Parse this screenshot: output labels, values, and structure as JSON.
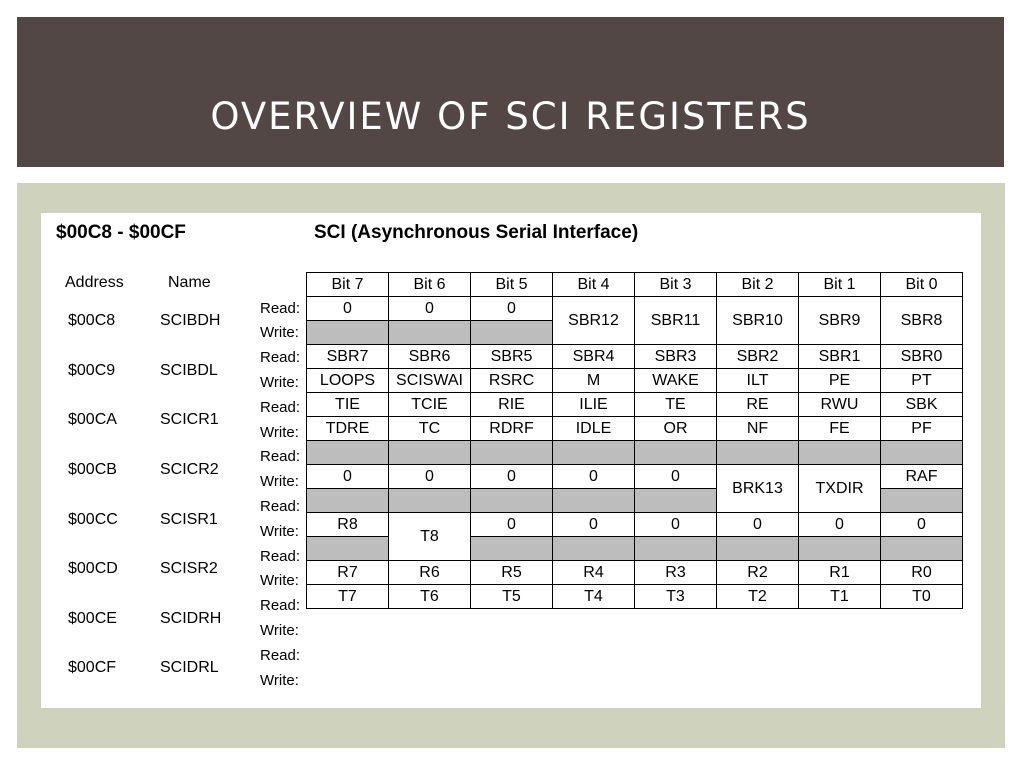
{
  "slide": {
    "title": "OVERVIEW OF SCI REGISTERS"
  },
  "doc": {
    "address_range": "$00C8 - $00CF",
    "title": "SCI (Asynchronous Serial Interface)",
    "col_address": "Address",
    "col_name": "Name",
    "read_label": "Read:",
    "write_label": "Write:",
    "bits": [
      "Bit 7",
      "Bit 6",
      "Bit 5",
      "Bit 4",
      "Bit 3",
      "Bit 2",
      "Bit 1",
      "Bit 0"
    ],
    "registers": [
      {
        "address": "$00C8",
        "name": "SCIBDH"
      },
      {
        "address": "$00C9",
        "name": "SCIBDL"
      },
      {
        "address": "$00CA",
        "name": "SCICR1"
      },
      {
        "address": "$00CB",
        "name": "SCICR2"
      },
      {
        "address": "$00CC",
        "name": "SCISR1"
      },
      {
        "address": "$00CD",
        "name": "SCISR2"
      },
      {
        "address": "$00CE",
        "name": "SCIDRH"
      },
      {
        "address": "$00CF",
        "name": "SCIDRL"
      }
    ],
    "cells": {
      "scibdh": {
        "b7_read": "0",
        "b6_read": "0",
        "b5_read": "0",
        "b4": "SBR12",
        "b3": "SBR11",
        "b2": "SBR10",
        "b1": "SBR9",
        "b0": "SBR8"
      },
      "scibdl": [
        "SBR7",
        "SBR6",
        "SBR5",
        "SBR4",
        "SBR3",
        "SBR2",
        "SBR1",
        "SBR0"
      ],
      "scicr1": [
        "LOOPS",
        "SCISWAI",
        "RSRC",
        "M",
        "WAKE",
        "ILT",
        "PE",
        "PT"
      ],
      "scicr2": [
        "TIE",
        "TCIE",
        "RIE",
        "ILIE",
        "TE",
        "RE",
        "RWU",
        "SBK"
      ],
      "scisr1": [
        "TDRE",
        "TC",
        "RDRF",
        "IDLE",
        "OR",
        "NF",
        "FE",
        "PF"
      ],
      "scisr2": {
        "b7_read": "0",
        "b6_read": "0",
        "b5_read": "0",
        "b4_read": "0",
        "b3_read": "0",
        "b2": "BRK13",
        "b1": "TXDIR",
        "b0_read": "RAF"
      },
      "scidrh": {
        "b7_read": "R8",
        "b6": "T8",
        "b5_read": "0",
        "b4_read": "0",
        "b3_read": "0",
        "b2_read": "0",
        "b1_read": "0",
        "b0_read": "0"
      },
      "scidrl_read": [
        "R7",
        "R6",
        "R5",
        "R4",
        "R3",
        "R2",
        "R1",
        "R0"
      ],
      "scidrl_write": [
        "T7",
        "T6",
        "T5",
        "T4",
        "T3",
        "T2",
        "T1",
        "T0"
      ]
    }
  }
}
